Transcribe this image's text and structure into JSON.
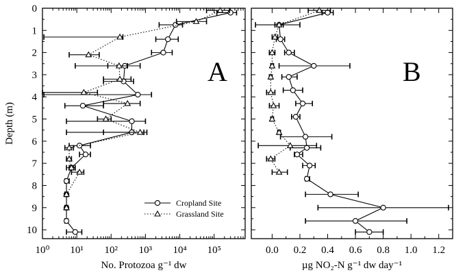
{
  "chart_data": [
    {
      "panel": "A",
      "type": "line",
      "xscale": "log",
      "xlim": [
        1,
        800000
      ],
      "ylim": [
        10.4,
        0
      ],
      "xlabel": "No. Protozoa g⁻¹ dw",
      "ylabel": "Depth (m)",
      "x_ticks": [
        1,
        10,
        100,
        1000,
        10000,
        100000
      ],
      "x_tick_labels": [
        "10⁰",
        "10¹",
        "10²",
        "10³",
        "10⁴",
        "10⁵"
      ],
      "y_ticks": [
        0,
        1,
        2,
        3,
        4,
        5,
        6,
        7,
        8,
        9,
        10
      ],
      "y_tick_labels": [
        "0",
        "1",
        "2",
        "3",
        "4",
        "5",
        "6",
        "7",
        "8",
        "9",
        "10"
      ],
      "legend": {
        "placement": "bottom-right",
        "entries": [
          {
            "label": "Cropland Site",
            "marker": "circle",
            "line": "solid"
          },
          {
            "label": "Grassland Site",
            "marker": "triangle",
            "line": "dotted"
          }
        ]
      },
      "series": [
        {
          "name": "Cropland Site",
          "marker": "circle",
          "line": "solid",
          "points": [
            {
              "x": 300000,
              "y": 0.2,
              "lo": 120000,
              "hi": 450000
            },
            {
              "x": 7500,
              "y": 0.75,
              "lo": 2500,
              "hi": 12000
            },
            {
              "x": 4500,
              "y": 1.4,
              "lo": 2000,
              "hi": 9000
            },
            {
              "x": 3300,
              "y": 2.0,
              "lo": 1500,
              "hi": 6000
            },
            {
              "x": 250,
              "y": 2.6,
              "lo": 9,
              "hi": 700
            },
            {
              "x": 230,
              "y": 3.3,
              "lo": 60,
              "hi": 450
            },
            {
              "x": 600,
              "y": 3.9,
              "lo": 1.1,
              "hi": 1500
            },
            {
              "x": 15,
              "y": 4.4,
              "lo": 4.5,
              "hi": 60
            },
            {
              "x": 400,
              "y": 5.1,
              "lo": 5,
              "hi": 1000
            },
            {
              "x": 400,
              "y": 5.6,
              "lo": 5,
              "hi": 900
            },
            {
              "x": 12,
              "y": 6.2,
              "lo": 6,
              "hi": 25
            },
            {
              "x": 18,
              "y": 6.6,
              "lo": 12,
              "hi": 25
            },
            {
              "x": 7,
              "y": 7.2,
              "lo": 5,
              "hi": 9
            },
            {
              "x": 5,
              "y": 7.8,
              "lo": 4.5,
              "hi": 6
            },
            {
              "x": 5,
              "y": 8.4,
              "lo": 4.5,
              "hi": 5.5
            },
            {
              "x": 5,
              "y": 9.0,
              "lo": 4.5,
              "hi": 5.5
            },
            {
              "x": 5,
              "y": 9.6,
              "lo": 4.5,
              "hi": 5.5
            },
            {
              "x": 9,
              "y": 10.1,
              "lo": 5,
              "hi": 14
            }
          ]
        },
        {
          "name": "Grassland Site",
          "marker": "triangle",
          "line": "dotted",
          "points": [
            {
              "x": 150000,
              "y": 0.1,
              "lo": 60000,
              "hi": 280000
            },
            {
              "x": 30000,
              "y": 0.6,
              "lo": 8000,
              "hi": 60000
            },
            {
              "x": 180,
              "y": 1.3,
              "lo": 1.1,
              "hi": 220
            },
            {
              "x": 22,
              "y": 2.1,
              "lo": 6,
              "hi": 45
            },
            {
              "x": 170,
              "y": 2.6,
              "lo": 80,
              "hi": 300
            },
            {
              "x": 180,
              "y": 3.2,
              "lo": 60,
              "hi": 380
            },
            {
              "x": 16,
              "y": 3.8,
              "lo": 1,
              "hi": 40
            },
            {
              "x": 300,
              "y": 4.3,
              "lo": 60,
              "hi": 700
            },
            {
              "x": 70,
              "y": 5.0,
              "lo": 40,
              "hi": 100
            },
            {
              "x": 700,
              "y": 5.6,
              "lo": 60,
              "hi": 1100
            },
            {
              "x": 6,
              "y": 6.3,
              "lo": 4.5,
              "hi": 8
            },
            {
              "x": 6,
              "y": 6.8,
              "lo": 5,
              "hi": 7
            },
            {
              "x": 7,
              "y": 7.2,
              "lo": 6,
              "hi": 8
            },
            {
              "x": 12,
              "y": 7.4,
              "lo": 7,
              "hi": 16
            },
            {
              "x": 5,
              "y": 8.4,
              "lo": 4.5,
              "hi": 5.5
            },
            {
              "x": 5,
              "y": 9.0,
              "lo": 4.5,
              "hi": 5.5
            }
          ]
        }
      ]
    },
    {
      "panel": "B",
      "type": "line",
      "xscale": "linear",
      "xlim": [
        -0.15,
        1.3
      ],
      "ylim": [
        10.4,
        0
      ],
      "xlabel": "µg NO₂-N g⁻¹ dw day⁻¹",
      "x_ticks": [
        0.0,
        0.2,
        0.4,
        0.6,
        0.8,
        1.0,
        1.2
      ],
      "x_tick_labels": [
        "0.0",
        "0.2",
        "0.4",
        "0.6",
        "0.8",
        "1.0",
        "1.2"
      ],
      "y_ticks": [
        0,
        1,
        2,
        3,
        4,
        5,
        6,
        7,
        8,
        9,
        10
      ],
      "series": [
        {
          "name": "Cropland Site",
          "marker": "circle",
          "line": "solid",
          "points": [
            {
              "x": 0.4,
              "y": 0.2,
              "lo": 0.36,
              "hi": 0.44
            },
            {
              "x": 0.05,
              "y": 0.75,
              "lo": 0.02,
              "hi": 0.08
            },
            {
              "x": 0.06,
              "y": 1.4,
              "lo": 0.03,
              "hi": 0.09
            },
            {
              "x": 0.12,
              "y": 2.0,
              "lo": 0.09,
              "hi": 0.16
            },
            {
              "x": 0.3,
              "y": 2.6,
              "lo": 0.05,
              "hi": 0.56
            },
            {
              "x": 0.12,
              "y": 3.1,
              "lo": 0.07,
              "hi": 0.18
            },
            {
              "x": 0.15,
              "y": 3.7,
              "lo": 0.08,
              "hi": 0.22
            },
            {
              "x": 0.22,
              "y": 4.3,
              "lo": 0.17,
              "hi": 0.29
            },
            {
              "x": 0.17,
              "y": 4.9,
              "lo": 0.14,
              "hi": 0.2
            },
            {
              "x": 0.24,
              "y": 5.8,
              "lo": 0.06,
              "hi": 0.43
            },
            {
              "x": 0.25,
              "y": 6.3,
              "lo": 0.13,
              "hi": 0.35
            },
            {
              "x": 0.18,
              "y": 6.6,
              "lo": 0.16,
              "hi": 0.22
            },
            {
              "x": 0.27,
              "y": 7.1,
              "lo": 0.22,
              "hi": 0.31
            },
            {
              "x": 0.25,
              "y": 7.7,
              "lo": 0.24,
              "hi": 0.27
            },
            {
              "x": 0.42,
              "y": 8.4,
              "lo": 0.24,
              "hi": 0.62
            },
            {
              "x": 0.8,
              "y": 9.0,
              "lo": 0.33,
              "hi": 1.27
            },
            {
              "x": 0.6,
              "y": 9.6,
              "lo": 0.24,
              "hi": 0.97
            },
            {
              "x": 0.7,
              "y": 10.1,
              "lo": 0.6,
              "hi": 0.8
            }
          ]
        },
        {
          "name": "Grassland Site",
          "marker": "triangle",
          "line": "dotted",
          "points": [
            {
              "x": 0.34,
              "y": 0.1,
              "lo": 0.26,
              "hi": 0.42
            },
            {
              "x": 0.05,
              "y": 0.75,
              "lo": -0.12,
              "hi": 0.2
            },
            {
              "x": 0.02,
              "y": 1.3,
              "lo": 0.0,
              "hi": 0.04
            },
            {
              "x": 0.0,
              "y": 2.0,
              "lo": -0.02,
              "hi": 0.02
            },
            {
              "x": 0.0,
              "y": 2.6,
              "lo": -0.01,
              "hi": 0.01
            },
            {
              "x": -0.01,
              "y": 3.1,
              "lo": -0.02,
              "hi": 0.0
            },
            {
              "x": -0.01,
              "y": 3.8,
              "lo": -0.04,
              "hi": 0.02
            },
            {
              "x": 0.01,
              "y": 4.4,
              "lo": -0.02,
              "hi": 0.05
            },
            {
              "x": 0.0,
              "y": 5.0,
              "lo": -0.01,
              "hi": 0.01
            },
            {
              "x": 0.05,
              "y": 5.6,
              "lo": 0.04,
              "hi": 0.06
            },
            {
              "x": 0.13,
              "y": 6.2,
              "lo": -0.1,
              "hi": 0.32
            },
            {
              "x": -0.01,
              "y": 6.8,
              "lo": -0.04,
              "hi": 0.02
            },
            {
              "x": 0.05,
              "y": 7.4,
              "lo": 0.0,
              "hi": 0.11
            }
          ]
        }
      ]
    }
  ]
}
